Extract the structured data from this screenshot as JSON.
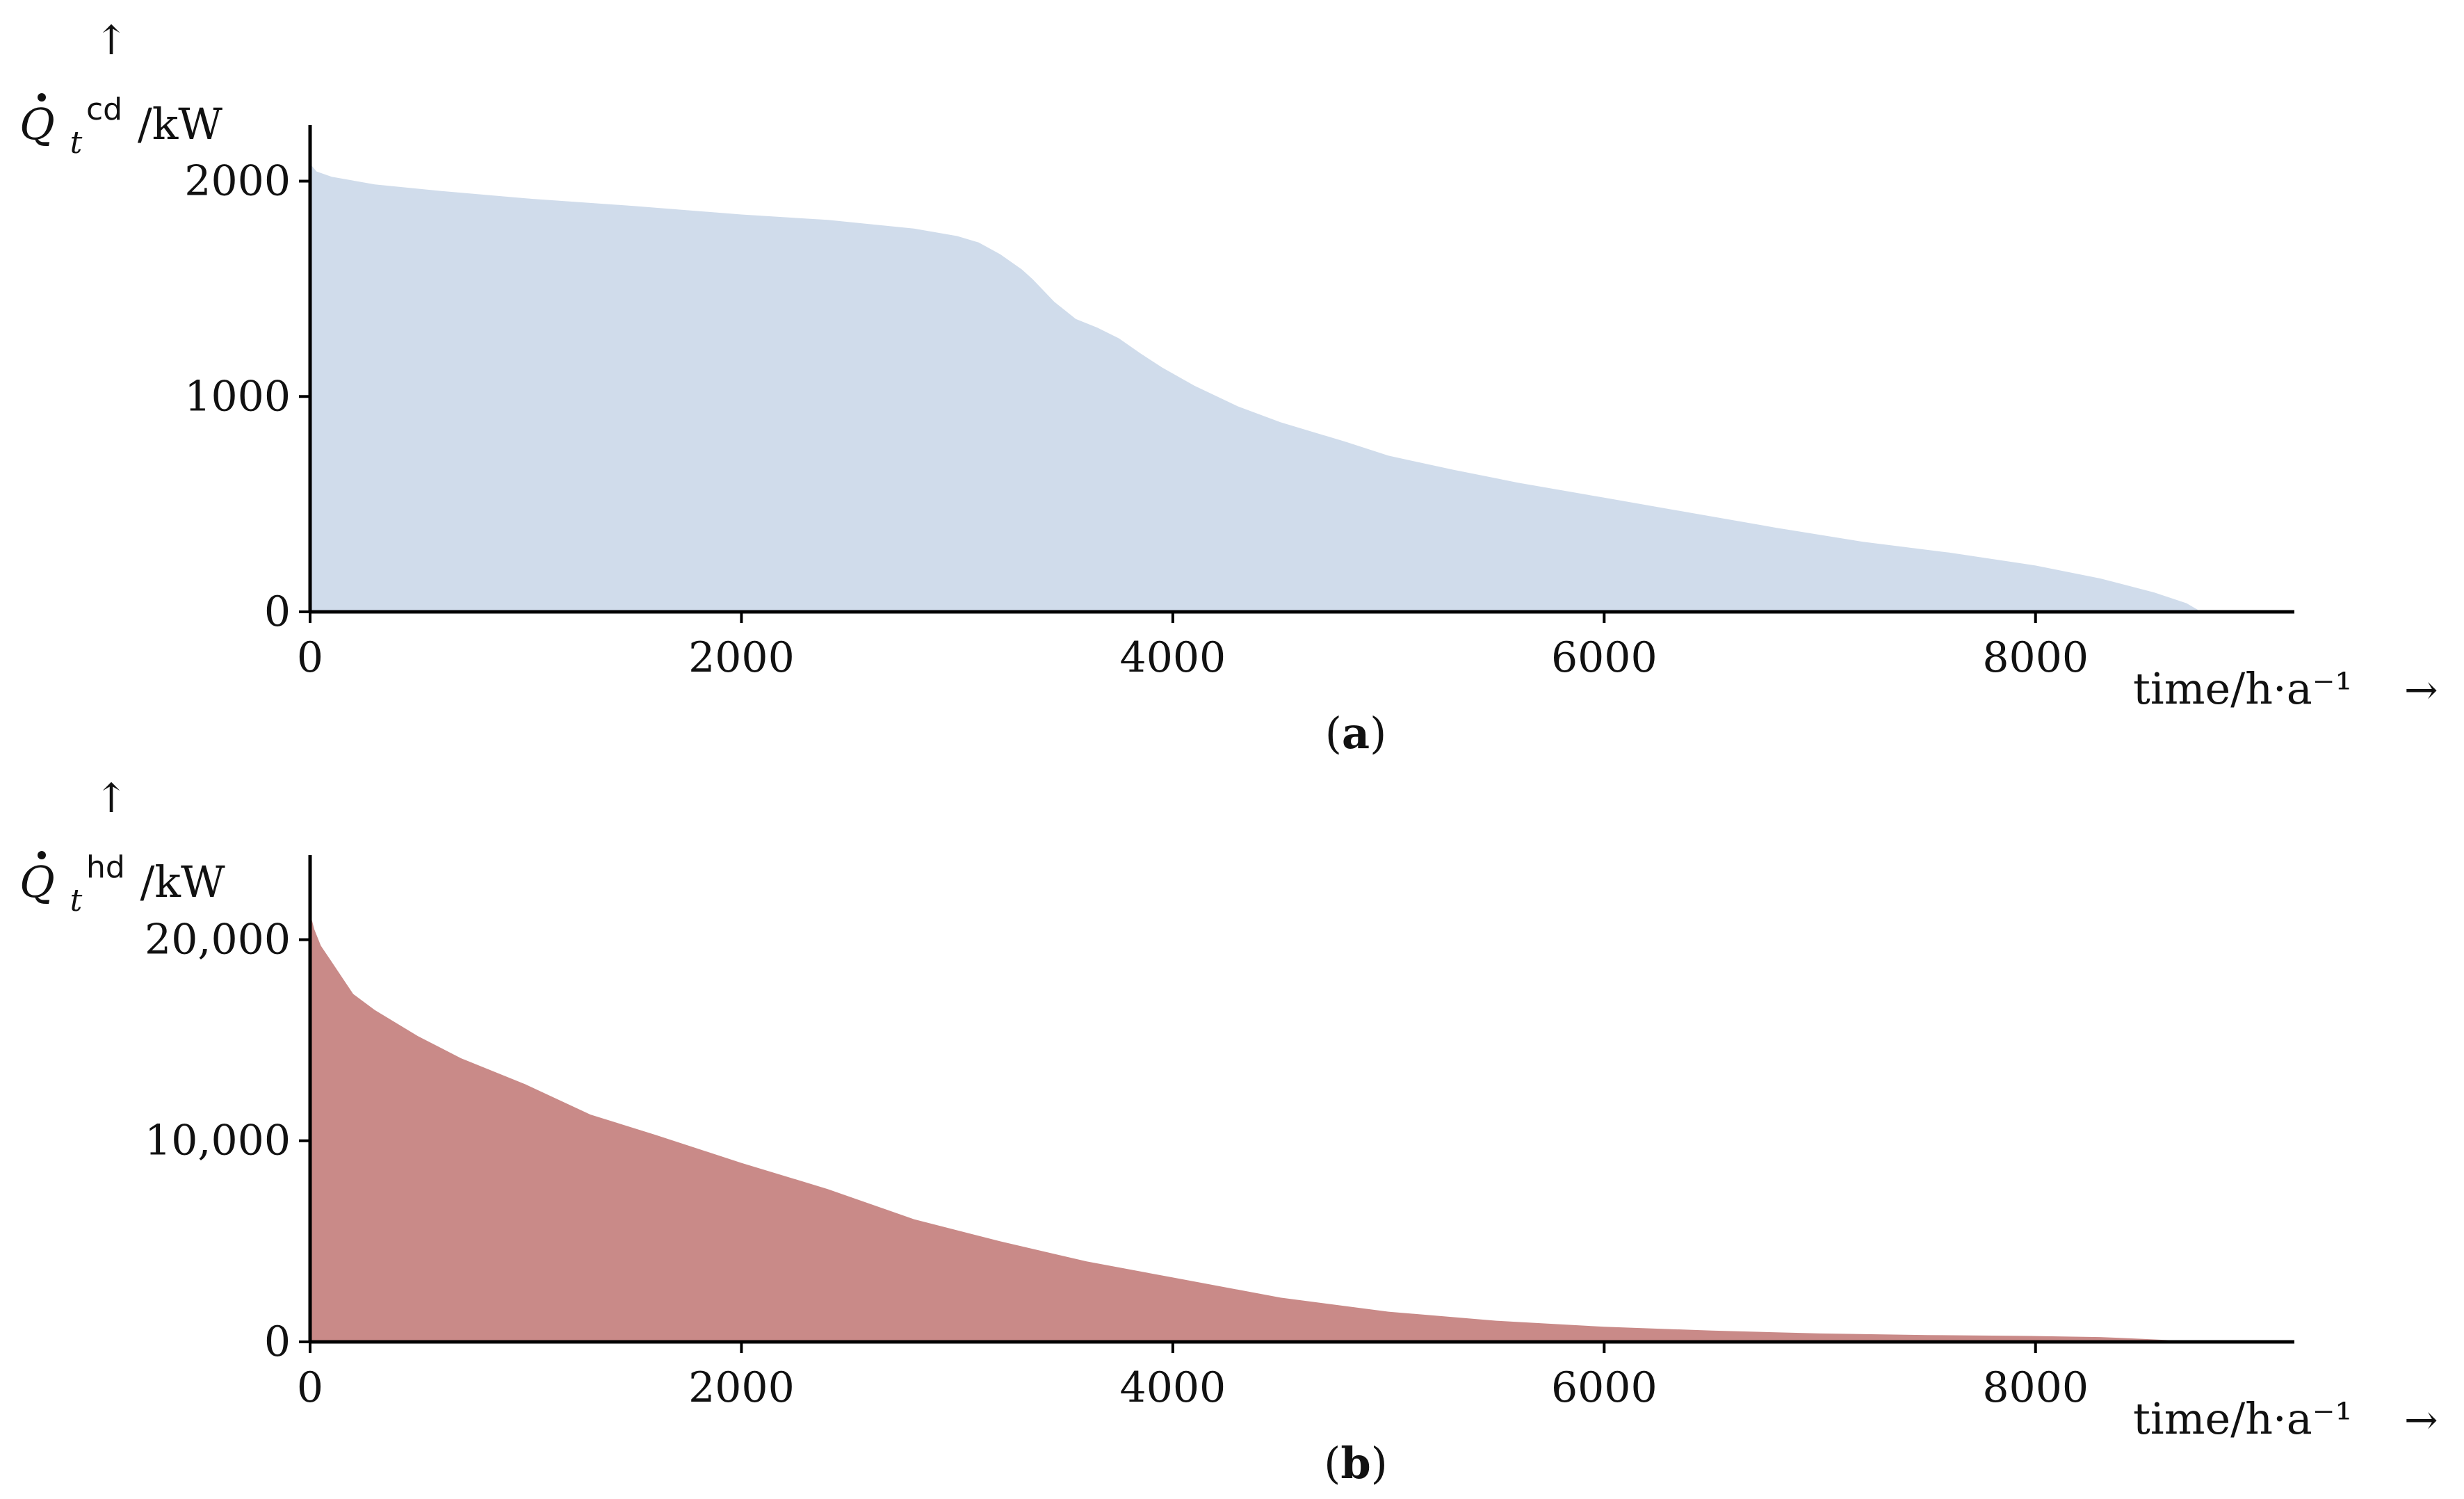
{
  "colors": {
    "cooling_fill": "#d0dceb",
    "heating_fill": "#c98a88",
    "axis": "#000000"
  },
  "axis_arrows": {
    "up": "↑",
    "right": "→"
  },
  "chart_data": [
    {
      "type": "area",
      "panel_label": "a",
      "ylabel": {
        "symbol": "Q",
        "sub": "t",
        "sup": "cd",
        "unit": "/kW"
      },
      "xlabel": "time/h·a⁻¹",
      "xlim": [
        0,
        9200
      ],
      "ylim": [
        0,
        2260
      ],
      "xticks": [
        0,
        2000,
        4000,
        6000,
        8000
      ],
      "xtick_labels": [
        "0",
        "2000",
        "4000",
        "6000",
        "8000"
      ],
      "yticks": [
        0,
        1000,
        2000
      ],
      "ytick_labels": [
        "0",
        "1000",
        "2000"
      ],
      "grid": false,
      "legend": "none",
      "series": [
        {
          "x": [
            0,
            30,
            100,
            300,
            600,
            1000,
            1500,
            2000,
            2400,
            2800,
            3000,
            3100,
            3200,
            3300,
            3350,
            3450,
            3550,
            3650,
            3750,
            3850,
            3950,
            4100,
            4300,
            4500,
            4800,
            5000,
            5300,
            5600,
            6000,
            6400,
            6800,
            7200,
            7600,
            8000,
            8300,
            8550,
            8700,
            8760
          ],
          "y": [
            2080,
            2045,
            2020,
            1985,
            1955,
            1920,
            1885,
            1845,
            1820,
            1780,
            1745,
            1715,
            1660,
            1590,
            1545,
            1440,
            1360,
            1320,
            1270,
            1200,
            1135,
            1050,
            955,
            880,
            790,
            725,
            660,
            600,
            530,
            460,
            390,
            325,
            275,
            215,
            155,
            90,
            40,
            5
          ]
        }
      ]
    },
    {
      "type": "area",
      "panel_label": "b",
      "ylabel": {
        "symbol": "Q",
        "sub": "t",
        "sup": "hd",
        "unit": "/kW"
      },
      "xlabel": "time/h·a⁻¹",
      "xlim": [
        0,
        9200
      ],
      "ylim": [
        0,
        24200
      ],
      "xticks": [
        0,
        2000,
        4000,
        6000,
        8000
      ],
      "xtick_labels": [
        "0",
        "2000",
        "4000",
        "6000",
        "8000"
      ],
      "yticks": [
        0,
        10000,
        20000
      ],
      "ytick_labels": [
        "0",
        "10,000",
        "20,000"
      ],
      "grid": false,
      "legend": "none",
      "series": [
        {
          "x": [
            0,
            20,
            50,
            100,
            200,
            300,
            500,
            700,
            1000,
            1300,
            1600,
            2000,
            2400,
            2800,
            3200,
            3600,
            4000,
            4500,
            5000,
            5500,
            6000,
            6500,
            7000,
            7500,
            8000,
            8300,
            8500,
            8700,
            8760
          ],
          "y": [
            21300,
            20500,
            19700,
            18900,
            17300,
            16500,
            15200,
            14100,
            12800,
            11300,
            10300,
            8900,
            7600,
            6100,
            5000,
            4000,
            3200,
            2200,
            1500,
            1050,
            750,
            560,
            420,
            340,
            290,
            240,
            150,
            40,
            0
          ]
        }
      ]
    }
  ]
}
